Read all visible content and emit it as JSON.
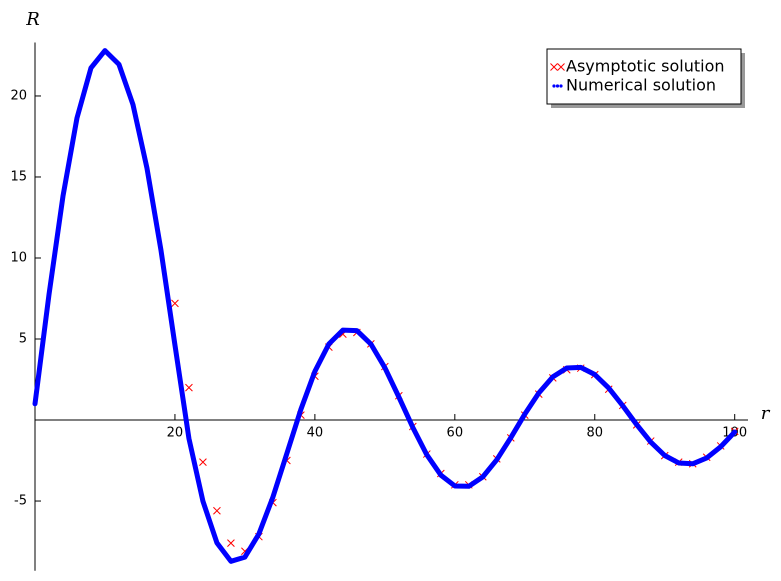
{
  "chart_data": {
    "type": "line",
    "x_label": "r",
    "y_label": "R",
    "xlim": [
      0,
      101.9
    ],
    "ylim": [
      -9.3,
      23.3
    ],
    "xticks": [
      20,
      40,
      60,
      80,
      100
    ],
    "yticks": [
      -5,
      5,
      10,
      15,
      20
    ],
    "legend_position": "upper right",
    "series": [
      {
        "name": "Asymptotic solution",
        "color": "#ff0000",
        "marker": "x",
        "x": [
          20,
          22,
          24,
          26,
          28,
          30,
          32,
          34,
          36,
          38,
          40,
          42,
          44,
          46,
          48,
          50,
          52,
          54,
          56,
          58,
          60,
          62,
          64,
          66,
          68,
          70,
          72,
          74,
          76,
          78,
          80,
          82,
          84,
          86,
          88,
          90,
          92,
          94,
          96,
          98,
          100
        ],
        "values": [
          7.2,
          2.0,
          -2.6,
          -5.6,
          -7.6,
          -8.1,
          -7.2,
          -5.1,
          -2.5,
          0.3,
          2.7,
          4.5,
          5.3,
          5.4,
          4.7,
          3.3,
          1.5,
          -0.4,
          -2.1,
          -3.3,
          -4.0,
          -4.0,
          -3.5,
          -2.4,
          -1.1,
          0.3,
          1.6,
          2.6,
          3.1,
          3.2,
          2.8,
          1.9,
          0.9,
          -0.3,
          -1.3,
          -2.2,
          -2.6,
          -2.7,
          -2.3,
          -1.6,
          -0.7
        ]
      },
      {
        "name": "Numerical solution",
        "color": "#0000ff",
        "marker": "dot",
        "x": [
          0,
          2,
          4,
          6,
          8,
          10,
          12,
          14,
          16,
          18,
          20,
          22,
          24,
          26,
          28,
          30,
          32,
          34,
          36,
          38,
          40,
          42,
          44,
          46,
          48,
          50,
          52,
          54,
          56,
          58,
          60,
          62,
          64,
          66,
          68,
          70,
          72,
          74,
          76,
          78,
          80,
          82,
          84,
          86,
          88,
          90,
          92,
          94,
          96,
          98,
          100
        ],
        "values": [
          1,
          7.74,
          13.82,
          18.64,
          21.73,
          22.8,
          21.95,
          19.47,
          15.55,
          10.49,
          4.63,
          -1.14,
          -5.01,
          -7.58,
          -8.72,
          -8.46,
          -7.03,
          -4.76,
          -2.06,
          0.66,
          3.0,
          4.69,
          5.55,
          5.52,
          4.69,
          3.23,
          1.42,
          -0.46,
          -2.15,
          -3.4,
          -4.07,
          -4.09,
          -3.51,
          -2.45,
          -1.09,
          0.36,
          1.67,
          2.66,
          3.21,
          3.25,
          2.81,
          1.97,
          0.88,
          -0.29,
          -1.36,
          -2.19,
          -2.65,
          -2.7,
          -2.34,
          -1.65,
          -0.74
        ]
      }
    ]
  }
}
